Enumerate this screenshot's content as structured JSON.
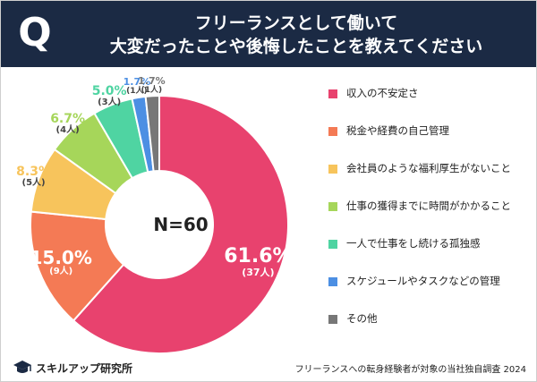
{
  "header": {
    "badge": "Q",
    "title_line1": "フリーランスとして働いて",
    "title_line2": "大変だったことや後悔したことを教えてください"
  },
  "center_label": "N=60",
  "chart_data": {
    "type": "pie",
    "variant": "donut",
    "legend_position": "right",
    "slices": [
      {
        "label": "収入の不安定さ",
        "value": 61.6,
        "pct_text": "61.6%",
        "count_text": "(37人)",
        "color": "#e8426e"
      },
      {
        "label": "税金や経費の自己管理",
        "value": 15.0,
        "pct_text": "15.0%",
        "count_text": "(9人)",
        "color": "#f47a55"
      },
      {
        "label": "会社員のような福利厚生がないこと",
        "value": 8.3,
        "pct_text": "8.3%",
        "count_text": "(5人)",
        "color": "#f7c45c"
      },
      {
        "label": "仕事の獲得までに時間がかかること",
        "value": 6.7,
        "pct_text": "6.7%",
        "count_text": "(4人)",
        "color": "#a6d65a"
      },
      {
        "label": "一人で仕事をし続ける孤独感",
        "value": 5.0,
        "pct_text": "5.0%",
        "count_text": "(3人)",
        "color": "#4fd4a2"
      },
      {
        "label": "スケジュールやタスクなどの管理",
        "value": 1.7,
        "pct_text": "1.7%",
        "count_text": "(1人)",
        "color": "#4c8fe3"
      },
      {
        "label": "その他",
        "value": 1.7,
        "pct_text": "1.7%",
        "count_text": "(1人)",
        "color": "#777777"
      }
    ]
  },
  "footer": {
    "logo_text": "スキルアップ研究所",
    "logo_icon": "graduation-cap-icon",
    "source": "フリーランスへの転身経験者が対象の当社独自調査 2024"
  }
}
